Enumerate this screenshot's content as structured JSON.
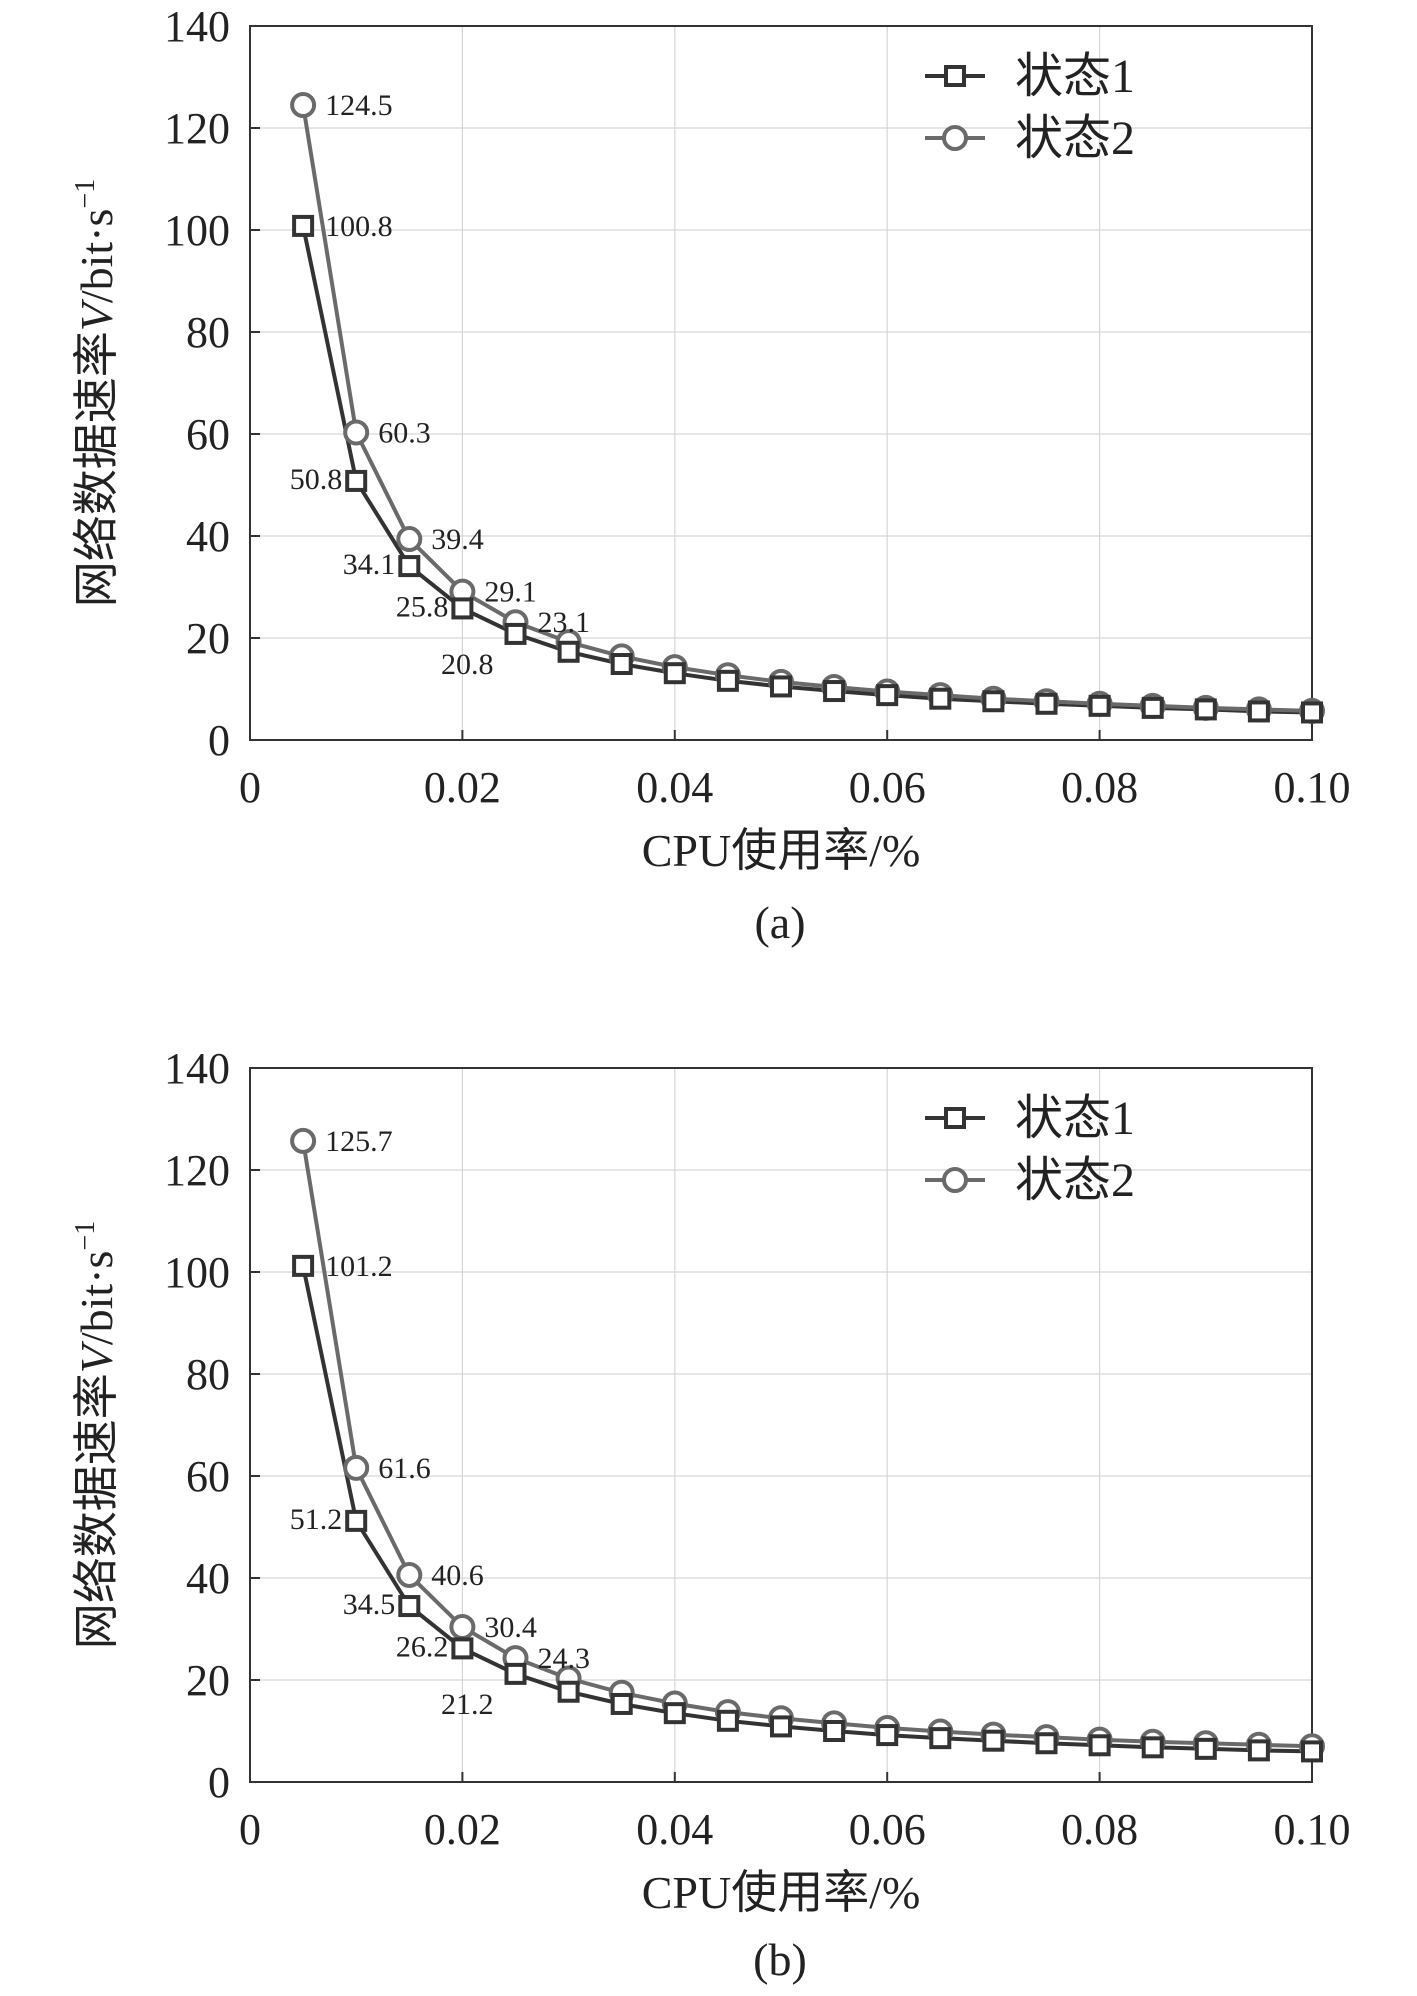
{
  "colors": {
    "s1": "#333333",
    "s2": "#6a6a6a",
    "grid": "#d6d6d6",
    "axis": "#333333"
  },
  "chart_data": [
    {
      "type": "line",
      "caption": "(a)",
      "xlabel": "CPU使用率/%",
      "ylabel_prefix": "网络数据速率",
      "ylabel_var": "V",
      "ylabel_unit": "/bit·s",
      "ylabel_sup": "−1",
      "xlim": [
        0,
        0.1
      ],
      "ylim": [
        0,
        140
      ],
      "xticks": [
        0,
        0.02,
        0.04,
        0.06,
        0.08,
        0.1
      ],
      "xtick_labels": [
        "0",
        "0.02",
        "0.04",
        "0.06",
        "0.08",
        "0.10"
      ],
      "yticks": [
        0,
        20,
        40,
        60,
        80,
        100,
        120,
        140
      ],
      "ytick_labels": [
        "0",
        "20",
        "40",
        "60",
        "80",
        "100",
        "120",
        "140"
      ],
      "x": [
        0.005,
        0.01,
        0.015,
        0.02,
        0.025,
        0.03,
        0.035,
        0.04,
        0.045,
        0.05,
        0.055,
        0.06,
        0.065,
        0.07,
        0.075,
        0.08,
        0.085,
        0.09,
        0.095,
        0.1
      ],
      "series": [
        {
          "name": "状态1",
          "marker": "square",
          "values": [
            100.8,
            50.8,
            34.1,
            25.8,
            20.8,
            17.3,
            14.9,
            13.1,
            11.6,
            10.5,
            9.6,
            8.8,
            8.1,
            7.6,
            7.1,
            6.7,
            6.3,
            6.0,
            5.6,
            5.4
          ]
        },
        {
          "name": "状态2",
          "marker": "circle",
          "values": [
            124.5,
            60.3,
            39.4,
            29.1,
            23.1,
            19.2,
            16.4,
            14.3,
            12.7,
            11.4,
            10.4,
            9.5,
            8.8,
            8.1,
            7.6,
            7.1,
            6.7,
            6.3,
            6.0,
            5.7
          ]
        }
      ],
      "annotations": [
        {
          "series": 1,
          "index": 0,
          "text": "124.5",
          "side": "right"
        },
        {
          "series": 0,
          "index": 0,
          "text": "100.8",
          "side": "right"
        },
        {
          "series": 1,
          "index": 1,
          "text": "60.3",
          "side": "right"
        },
        {
          "series": 0,
          "index": 1,
          "text": "50.8",
          "side": "left"
        },
        {
          "series": 1,
          "index": 2,
          "text": "39.4",
          "side": "right"
        },
        {
          "series": 0,
          "index": 2,
          "text": "34.1",
          "side": "left"
        },
        {
          "series": 1,
          "index": 3,
          "text": "29.1",
          "side": "right"
        },
        {
          "series": 0,
          "index": 3,
          "text": "25.8",
          "side": "left"
        },
        {
          "series": 1,
          "index": 4,
          "text": "23.1",
          "side": "right"
        },
        {
          "series": 0,
          "index": 4,
          "text": "20.8",
          "side": "leftbelow"
        }
      ],
      "legend": [
        "状态1",
        "状态2"
      ]
    },
    {
      "type": "line",
      "caption": "(b)",
      "xlabel": "CPU使用率/%",
      "ylabel_prefix": "网络数据速率",
      "ylabel_var": "V",
      "ylabel_unit": "/bit·s",
      "ylabel_sup": "−1",
      "xlim": [
        0,
        0.1
      ],
      "ylim": [
        0,
        140
      ],
      "xticks": [
        0,
        0.02,
        0.04,
        0.06,
        0.08,
        0.1
      ],
      "xtick_labels": [
        "0",
        "0.02",
        "0.04",
        "0.06",
        "0.08",
        "0.10"
      ],
      "yticks": [
        0,
        20,
        40,
        60,
        80,
        100,
        120,
        140
      ],
      "ytick_labels": [
        "0",
        "20",
        "40",
        "60",
        "80",
        "100",
        "120",
        "140"
      ],
      "x": [
        0.005,
        0.01,
        0.015,
        0.02,
        0.025,
        0.03,
        0.035,
        0.04,
        0.045,
        0.05,
        0.055,
        0.06,
        0.065,
        0.07,
        0.075,
        0.08,
        0.085,
        0.09,
        0.095,
        0.1
      ],
      "series": [
        {
          "name": "状态1",
          "marker": "square",
          "values": [
            101.2,
            51.2,
            34.5,
            26.2,
            21.2,
            17.7,
            15.3,
            13.5,
            12.0,
            10.9,
            10.0,
            9.2,
            8.6,
            8.1,
            7.6,
            7.2,
            6.8,
            6.5,
            6.2,
            6.0
          ]
        },
        {
          "name": "状态2",
          "marker": "circle",
          "values": [
            125.7,
            61.6,
            40.6,
            30.4,
            24.3,
            20.3,
            17.5,
            15.4,
            13.7,
            12.5,
            11.5,
            10.6,
            9.9,
            9.3,
            8.8,
            8.3,
            7.9,
            7.6,
            7.3,
            7.0
          ]
        }
      ],
      "annotations": [
        {
          "series": 1,
          "index": 0,
          "text": "125.7",
          "side": "right"
        },
        {
          "series": 0,
          "index": 0,
          "text": "101.2",
          "side": "right"
        },
        {
          "series": 1,
          "index": 1,
          "text": "61.6",
          "side": "right"
        },
        {
          "series": 0,
          "index": 1,
          "text": "51.2",
          "side": "left"
        },
        {
          "series": 1,
          "index": 2,
          "text": "40.6",
          "side": "right"
        },
        {
          "series": 0,
          "index": 2,
          "text": "34.5",
          "side": "left"
        },
        {
          "series": 1,
          "index": 3,
          "text": "30.4",
          "side": "right"
        },
        {
          "series": 0,
          "index": 3,
          "text": "26.2",
          "side": "left"
        },
        {
          "series": 1,
          "index": 4,
          "text": "24.3",
          "side": "right"
        },
        {
          "series": 0,
          "index": 4,
          "text": "21.2",
          "side": "leftbelow"
        }
      ],
      "legend": [
        "状态1",
        "状态2"
      ]
    }
  ]
}
